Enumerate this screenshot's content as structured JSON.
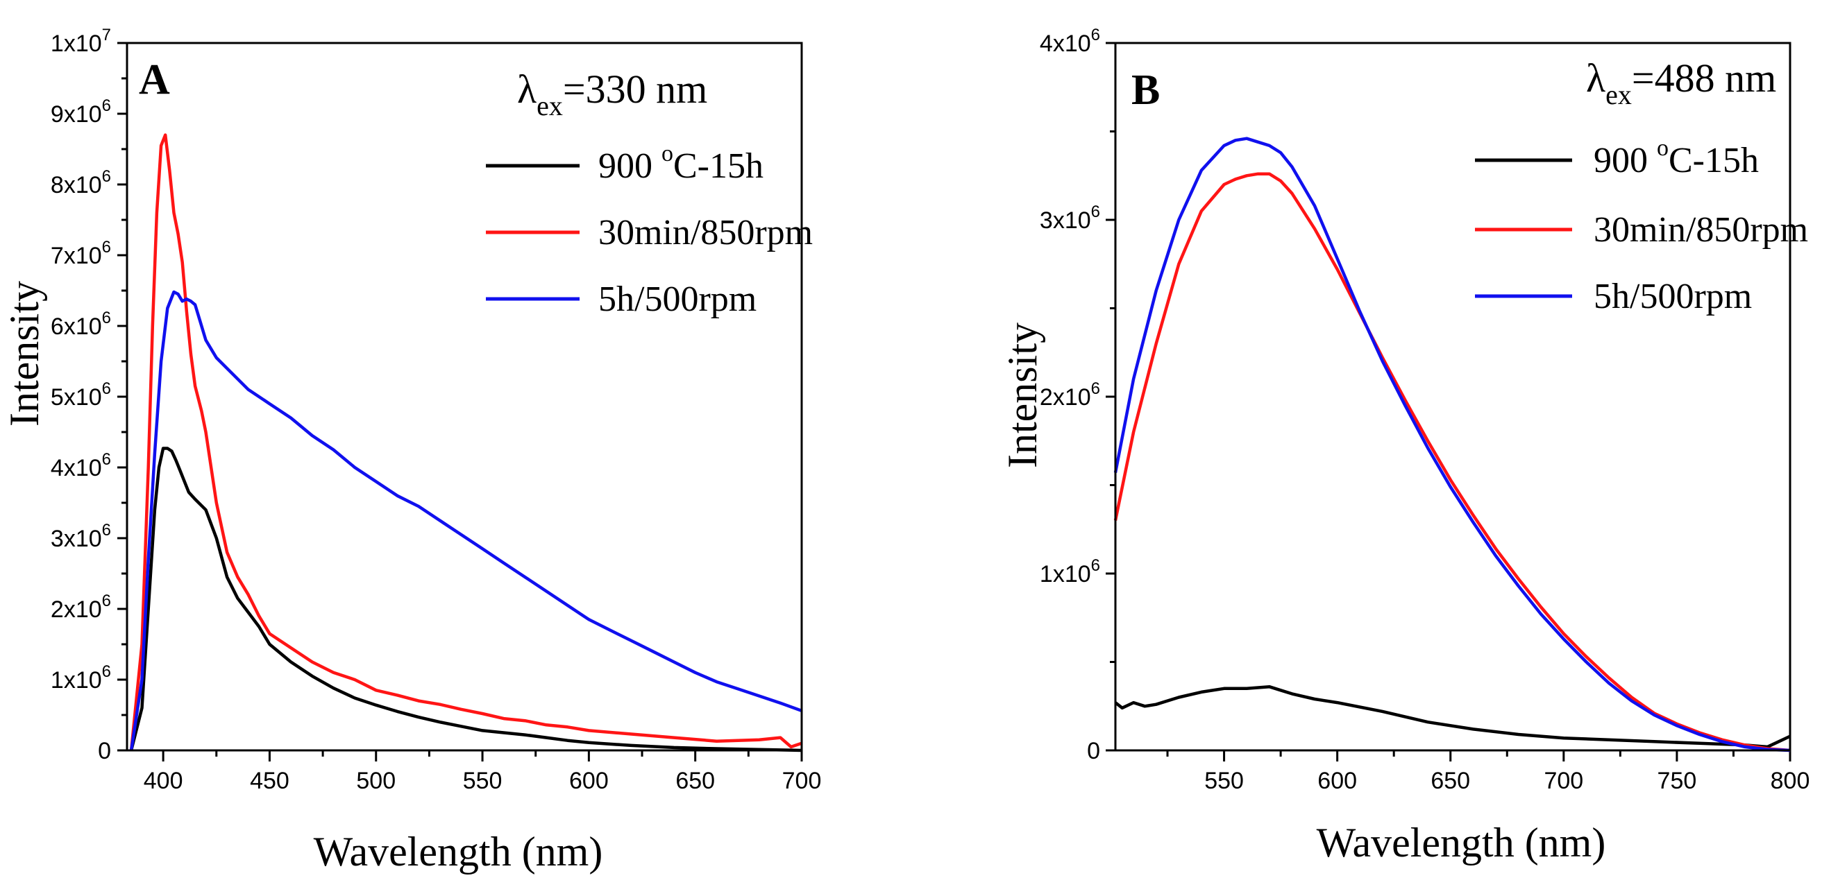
{
  "figure": {
    "colors": {
      "black": "#000000",
      "red": "#ff1515",
      "blue": "#1010ee"
    }
  },
  "chart_data": [
    {
      "type": "line",
      "panel_label": "A",
      "annotation": {
        "symbol": "λ",
        "subscript": "ex",
        "value": "=330 nm"
      },
      "xlabel": "Wavelength (nm)",
      "ylabel": "Intensity",
      "xlim": [
        383,
        700
      ],
      "ylim": [
        0,
        10000000
      ],
      "x_ticks": [
        400,
        450,
        500,
        550,
        600,
        650,
        700
      ],
      "x_tick_labels": [
        "400",
        "450",
        "500",
        "550",
        "600",
        "650",
        "700"
      ],
      "y_ticks": [
        0,
        1000000,
        2000000,
        3000000,
        4000000,
        5000000,
        6000000,
        7000000,
        8000000,
        9000000,
        10000000
      ],
      "y_tick_labels": [
        {
          "base": "0",
          "exp": ""
        },
        {
          "base": "1x10",
          "exp": "6"
        },
        {
          "base": "2x10",
          "exp": "6"
        },
        {
          "base": "3x10",
          "exp": "6"
        },
        {
          "base": "4x10",
          "exp": "6"
        },
        {
          "base": "5x10",
          "exp": "6"
        },
        {
          "base": "6x10",
          "exp": "6"
        },
        {
          "base": "7x10",
          "exp": "6"
        },
        {
          "base": "8x10",
          "exp": "6"
        },
        {
          "base": "9x10",
          "exp": "6"
        },
        {
          "base": "1x10",
          "exp": "7"
        }
      ],
      "legend": [
        {
          "label_pre": "900 ",
          "label_sup": "o",
          "label_post": "C-15h",
          "color": "#000000"
        },
        {
          "label_pre": "30min/850rpm",
          "label_sup": "",
          "label_post": "",
          "color": "#ff1515"
        },
        {
          "label_pre": "5h/500rpm",
          "label_sup": "",
          "label_post": "",
          "color": "#1010ee"
        }
      ],
      "series": [
        {
          "name": "900 oC-15h",
          "color": "#000000",
          "x": [
            385,
            390,
            393,
            396,
            398,
            400,
            402,
            404,
            406,
            408,
            410,
            412,
            415,
            420,
            425,
            430,
            435,
            440,
            445,
            450,
            460,
            470,
            480,
            490,
            500,
            510,
            520,
            530,
            540,
            550,
            560,
            570,
            580,
            590,
            600,
            620,
            640,
            660,
            680,
            700
          ],
          "y": [
            0,
            600000,
            2000000,
            3400000,
            4000000,
            4270000,
            4270000,
            4230000,
            4100000,
            3950000,
            3800000,
            3650000,
            3550000,
            3400000,
            3000000,
            2450000,
            2150000,
            1950000,
            1750000,
            1500000,
            1250000,
            1050000,
            880000,
            740000,
            640000,
            550000,
            470000,
            400000,
            340000,
            280000,
            250000,
            220000,
            180000,
            140000,
            110000,
            70000,
            40000,
            25000,
            12000,
            0
          ]
        },
        {
          "name": "30min/850rpm",
          "color": "#ff1515",
          "x": [
            385,
            390,
            393,
            395,
            397,
            399,
            401,
            403,
            405,
            407,
            409,
            411,
            413,
            415,
            418,
            420,
            425,
            430,
            435,
            440,
            445,
            450,
            460,
            470,
            480,
            490,
            500,
            510,
            520,
            530,
            540,
            550,
            560,
            570,
            580,
            590,
            600,
            620,
            640,
            660,
            680,
            690,
            695,
            700
          ],
          "y": [
            0,
            1500000,
            4000000,
            6000000,
            7600000,
            8550000,
            8700000,
            8200000,
            7600000,
            7300000,
            6900000,
            6200000,
            5600000,
            5150000,
            4800000,
            4500000,
            3500000,
            2800000,
            2450000,
            2200000,
            1900000,
            1650000,
            1450000,
            1250000,
            1100000,
            1000000,
            850000,
            780000,
            700000,
            650000,
            580000,
            520000,
            450000,
            420000,
            360000,
            330000,
            280000,
            230000,
            180000,
            130000,
            150000,
            180000,
            50000,
            100000
          ]
        },
        {
          "name": "5h/500rpm",
          "color": "#1010ee",
          "x": [
            385,
            390,
            393,
            396,
            399,
            402,
            405,
            407,
            409,
            411,
            413,
            415,
            417,
            420,
            425,
            430,
            440,
            450,
            460,
            470,
            480,
            490,
            500,
            510,
            520,
            530,
            540,
            550,
            560,
            570,
            580,
            590,
            600,
            610,
            620,
            630,
            640,
            650,
            660,
            670,
            680,
            690,
            700
          ],
          "y": [
            0,
            1000000,
            2700000,
            4200000,
            5500000,
            6250000,
            6480000,
            6450000,
            6350000,
            6380000,
            6350000,
            6300000,
            6100000,
            5800000,
            5550000,
            5400000,
            5100000,
            4900000,
            4700000,
            4450000,
            4250000,
            4000000,
            3800000,
            3600000,
            3450000,
            3250000,
            3050000,
            2850000,
            2650000,
            2450000,
            2250000,
            2050000,
            1850000,
            1700000,
            1550000,
            1400000,
            1250000,
            1100000,
            970000,
            870000,
            770000,
            670000,
            560000
          ]
        }
      ]
    },
    {
      "type": "line",
      "panel_label": "B",
      "annotation": {
        "symbol": "λ",
        "subscript": "ex",
        "value": "=488 nm"
      },
      "xlabel": "Wavelength (nm)",
      "ylabel": "Intensity",
      "xlim": [
        502,
        800
      ],
      "ylim": [
        0,
        4000000
      ],
      "x_ticks": [
        550,
        600,
        650,
        700,
        750,
        800
      ],
      "x_tick_labels": [
        "550",
        "600",
        "650",
        "700",
        "750",
        "800"
      ],
      "y_ticks": [
        0,
        1000000,
        2000000,
        3000000,
        4000000
      ],
      "y_tick_labels": [
        {
          "base": "0",
          "exp": ""
        },
        {
          "base": "1x10",
          "exp": "6"
        },
        {
          "base": "2x10",
          "exp": "6"
        },
        {
          "base": "3x10",
          "exp": "6"
        },
        {
          "base": "4x10",
          "exp": "6"
        }
      ],
      "legend": [
        {
          "label_pre": "900 ",
          "label_sup": "o",
          "label_post": "C-15h",
          "color": "#000000"
        },
        {
          "label_pre": "30min/850rpm",
          "label_sup": "",
          "label_post": "",
          "color": "#ff1515"
        },
        {
          "label_pre": "5h/500rpm",
          "label_sup": "",
          "label_post": "",
          "color": "#1010ee"
        }
      ],
      "series": [
        {
          "name": "900 oC-15h",
          "color": "#000000",
          "x": [
            502,
            505,
            510,
            515,
            520,
            530,
            540,
            550,
            560,
            570,
            575,
            580,
            590,
            600,
            620,
            640,
            660,
            680,
            700,
            720,
            740,
            760,
            780,
            790,
            795,
            800
          ],
          "y": [
            270000,
            240000,
            270000,
            250000,
            260000,
            300000,
            330000,
            350000,
            350000,
            360000,
            340000,
            320000,
            290000,
            270000,
            220000,
            160000,
            120000,
            90000,
            70000,
            60000,
            50000,
            40000,
            30000,
            20000,
            50000,
            80000
          ]
        },
        {
          "name": "30min/850rpm",
          "color": "#ff1515",
          "x": [
            502,
            510,
            520,
            530,
            540,
            550,
            555,
            560,
            565,
            570,
            575,
            580,
            590,
            600,
            610,
            620,
            630,
            640,
            650,
            660,
            670,
            680,
            690,
            700,
            710,
            720,
            730,
            740,
            750,
            760,
            770,
            780,
            790,
            800
          ],
          "y": [
            1300000,
            1800000,
            2300000,
            2750000,
            3050000,
            3200000,
            3230000,
            3250000,
            3260000,
            3260000,
            3220000,
            3150000,
            2950000,
            2720000,
            2470000,
            2220000,
            1980000,
            1750000,
            1530000,
            1330000,
            1140000,
            970000,
            810000,
            660000,
            530000,
            410000,
            300000,
            210000,
            150000,
            100000,
            60000,
            30000,
            10000,
            0
          ]
        },
        {
          "name": "5h/500rpm",
          "color": "#1010ee",
          "x": [
            502,
            510,
            520,
            530,
            540,
            550,
            555,
            560,
            565,
            570,
            575,
            580,
            590,
            600,
            610,
            620,
            630,
            640,
            650,
            660,
            670,
            680,
            690,
            700,
            710,
            720,
            730,
            740,
            750,
            760,
            770,
            780,
            790,
            800
          ],
          "y": [
            1570000,
            2100000,
            2600000,
            3000000,
            3280000,
            3420000,
            3450000,
            3460000,
            3440000,
            3420000,
            3380000,
            3300000,
            3080000,
            2780000,
            2480000,
            2200000,
            1950000,
            1710000,
            1490000,
            1290000,
            1100000,
            930000,
            770000,
            630000,
            500000,
            380000,
            280000,
            200000,
            140000,
            90000,
            50000,
            20000,
            5000,
            0
          ]
        }
      ]
    }
  ]
}
